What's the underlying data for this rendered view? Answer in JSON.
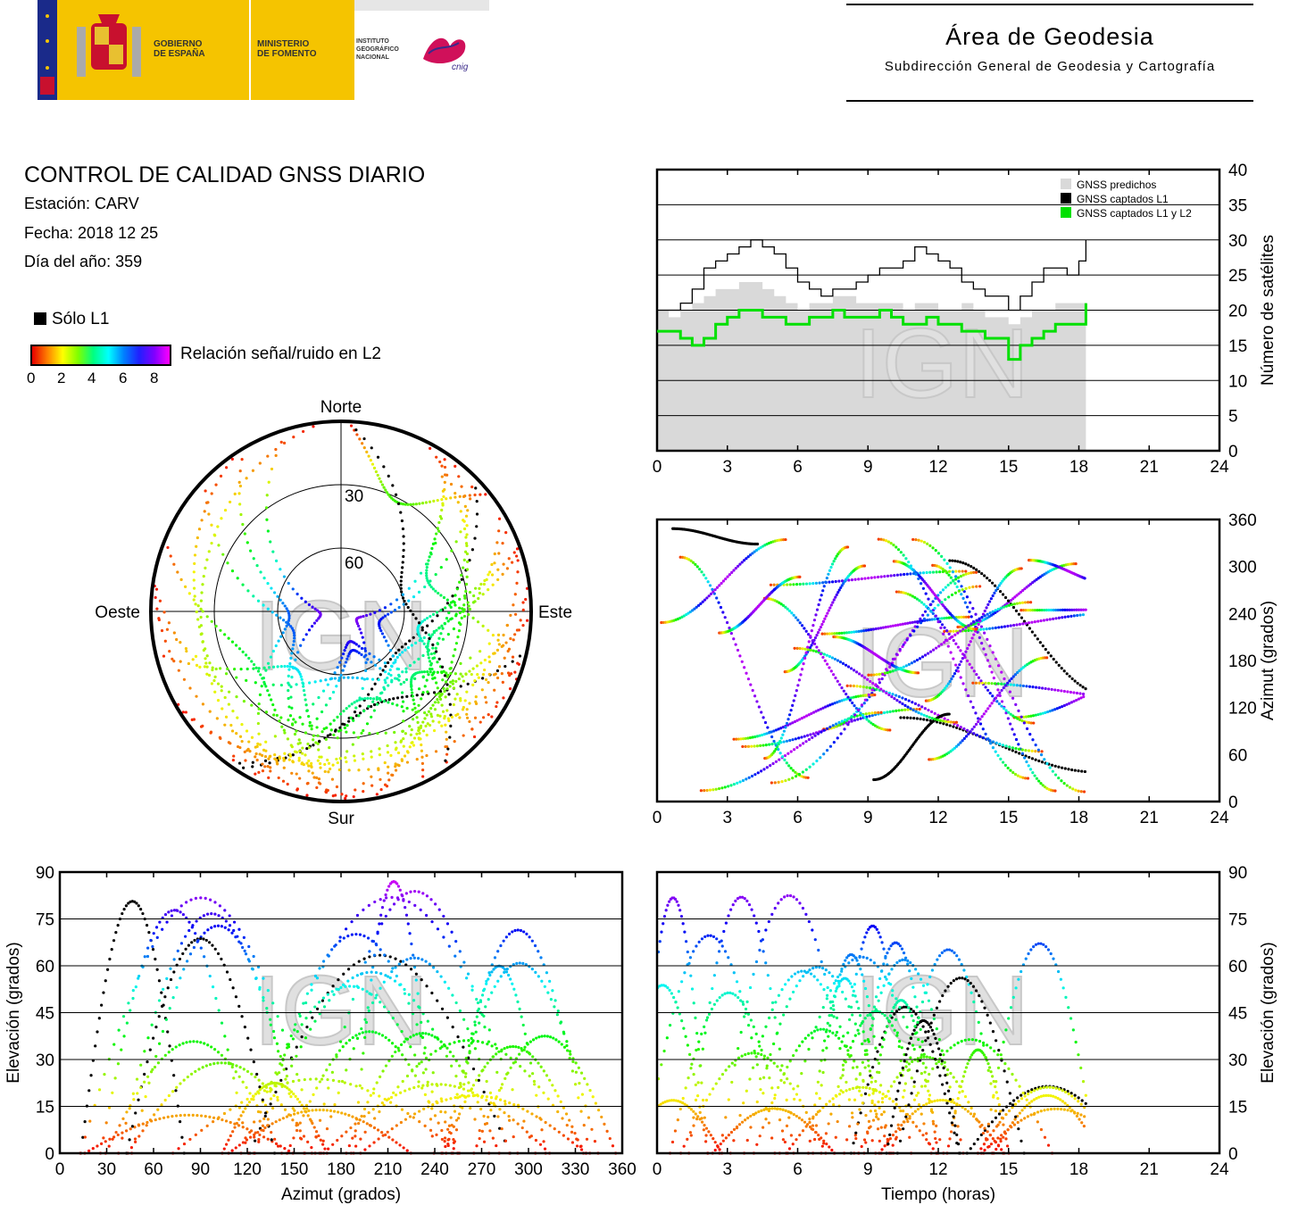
{
  "header": {
    "logo_gov": "GOBIERNO\nDE ESPAÑA",
    "logo_min": "MINISTERIO\nDE FOMENTO",
    "logo_ign": "INSTITUTO\nGEOGRÁFICO\nNACIONAL",
    "logo_cnig": "cnig",
    "area_title": "Área de Geodesia",
    "area_subtitle": "Subdirección General de Geodesia y Cartografía"
  },
  "report": {
    "title": "CONTROL DE CALIDAD GNSS DIARIO",
    "station": "Estación: CARV",
    "date": "Fecha: 2018 12 25",
    "doy": "Día del año: 359"
  },
  "legend": {
    "solo_l1": "Sólo L1",
    "snr_label": "Relación señal/ruido en L2",
    "snr_ticks": [
      "0",
      "2",
      "4",
      "6",
      "8"
    ]
  },
  "watermark": "IGN",
  "colors": {
    "predicted": "#d9d9d9",
    "l1": "#000000",
    "l1l2": "#00e000",
    "grid": "#000000"
  },
  "chart_data": [
    {
      "type": "line",
      "id": "satellite-count",
      "xlabel": "",
      "ylabel": "Número de satélites",
      "xlim": [
        0,
        24
      ],
      "ylim": [
        0,
        40
      ],
      "xticks": [
        "0",
        "3",
        "6",
        "9",
        "12",
        "15",
        "18",
        "21",
        "24"
      ],
      "yticks": [
        "0",
        "5",
        "10",
        "15",
        "20",
        "25",
        "30",
        "35",
        "40"
      ],
      "legend_position": "top-right",
      "x": [
        0,
        0.5,
        1,
        1.5,
        2,
        2.5,
        3,
        3.5,
        4,
        4.5,
        5,
        5.5,
        6,
        6.5,
        7,
        7.5,
        8,
        8.5,
        9,
        9.5,
        10,
        10.5,
        11,
        11.5,
        12,
        12.5,
        13,
        13.5,
        14,
        14.5,
        15,
        15.5,
        16,
        16.5,
        17,
        17.5,
        18,
        18.3
      ],
      "series": [
        {
          "name": "GNSS predichos",
          "values": [
            20,
            19,
            20,
            21,
            22,
            23,
            23,
            24,
            24,
            23,
            22,
            21,
            20,
            21,
            21,
            22,
            22,
            21,
            21,
            21,
            21,
            20,
            21,
            21,
            20,
            20,
            21,
            20,
            19,
            19,
            18,
            19,
            20,
            20,
            21,
            21,
            21,
            22
          ]
        },
        {
          "name": "GNSS captados L1",
          "values": [
            20,
            20,
            21,
            23,
            26,
            27,
            28,
            29,
            30,
            29,
            28,
            26,
            24,
            23,
            22,
            23,
            23,
            24,
            25,
            26,
            26,
            27,
            29,
            28,
            27,
            26,
            24,
            23,
            22,
            22,
            20,
            22,
            24,
            26,
            26,
            25,
            27,
            30
          ]
        },
        {
          "name": "GNSS captados L1 y L2",
          "values": [
            17,
            17,
            16,
            15,
            16,
            18,
            19,
            20,
            20,
            19,
            19,
            18,
            18,
            19,
            19,
            20,
            19,
            19,
            19,
            20,
            19,
            18,
            18,
            19,
            18,
            18,
            17,
            17,
            16,
            16,
            13,
            15,
            16,
            17,
            18,
            18,
            18,
            21
          ]
        }
      ]
    },
    {
      "type": "scatter",
      "id": "azimuth-time",
      "xlabel": "",
      "ylabel": "Azimut (grados)",
      "xlim": [
        0,
        24
      ],
      "ylim": [
        0,
        360
      ],
      "xticks": [
        "0",
        "3",
        "6",
        "9",
        "12",
        "15",
        "18",
        "21",
        "24"
      ],
      "yticks": [
        "0",
        "60",
        "120",
        "180",
        "240",
        "300",
        "360"
      ]
    },
    {
      "type": "scatter",
      "id": "elevation-azimuth",
      "xlabel": "Azimut (grados)",
      "ylabel": "Elevación (grados)",
      "xlim": [
        0,
        360
      ],
      "ylim": [
        0,
        90
      ],
      "xticks": [
        "0",
        "30",
        "60",
        "90",
        "120",
        "150",
        "180",
        "210",
        "240",
        "270",
        "300",
        "330",
        "360"
      ],
      "yticks": [
        "0",
        "15",
        "30",
        "45",
        "60",
        "75",
        "90"
      ]
    },
    {
      "type": "scatter",
      "id": "elevation-time",
      "xlabel": "Tiempo (horas)",
      "ylabel": "Elevación (grados)",
      "xlim": [
        0,
        24
      ],
      "ylim": [
        0,
        90
      ],
      "xticks": [
        "0",
        "3",
        "6",
        "9",
        "12",
        "15",
        "18",
        "21",
        "24"
      ],
      "yticks": [
        "0",
        "15",
        "30",
        "45",
        "60",
        "75",
        "90"
      ]
    },
    {
      "type": "scatter",
      "id": "skyplot",
      "labels": {
        "north": "Norte",
        "south": "Sur",
        "east": "Este",
        "west": "Oeste"
      },
      "rings": [
        "30",
        "60"
      ]
    }
  ]
}
